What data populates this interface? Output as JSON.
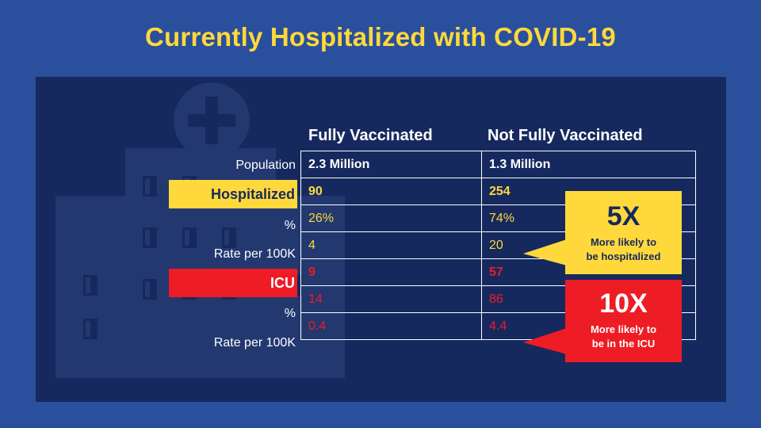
{
  "title": "Currently Hospitalized with COVID-19",
  "columns": [
    "Fully Vaccinated",
    "Not Fully Vaccinated"
  ],
  "rows": [
    {
      "label": "Population",
      "fully": "2.3 Million",
      "not_fully": "1.3 Million"
    },
    {
      "label": "Hospitalized",
      "fully": "90",
      "not_fully": "254"
    },
    {
      "label": "%",
      "fully": "26%",
      "not_fully": "74%"
    },
    {
      "label": "Rate per 100K",
      "fully": "4",
      "not_fully": "20"
    },
    {
      "label": "ICU",
      "fully": "9",
      "not_fully": "57"
    },
    {
      "label": "%",
      "fully": "14",
      "not_fully": "86"
    },
    {
      "label": "Rate per 100K",
      "fully": "0.4",
      "not_fully": "4.4"
    }
  ],
  "callouts": {
    "hospitalized": {
      "multiplier": "5X",
      "text_line1": "More likely to",
      "text_line2": "be hospitalized"
    },
    "icu": {
      "multiplier": "10X",
      "text_line1": "More likely to",
      "text_line2": "be in the ICU"
    }
  },
  "colors": {
    "background": "#2a4f9c",
    "panel": "#16295e",
    "yellow": "#ffd93b",
    "red": "#ee1c25"
  },
  "icons": {
    "watermark": "hospital-building-icon"
  }
}
